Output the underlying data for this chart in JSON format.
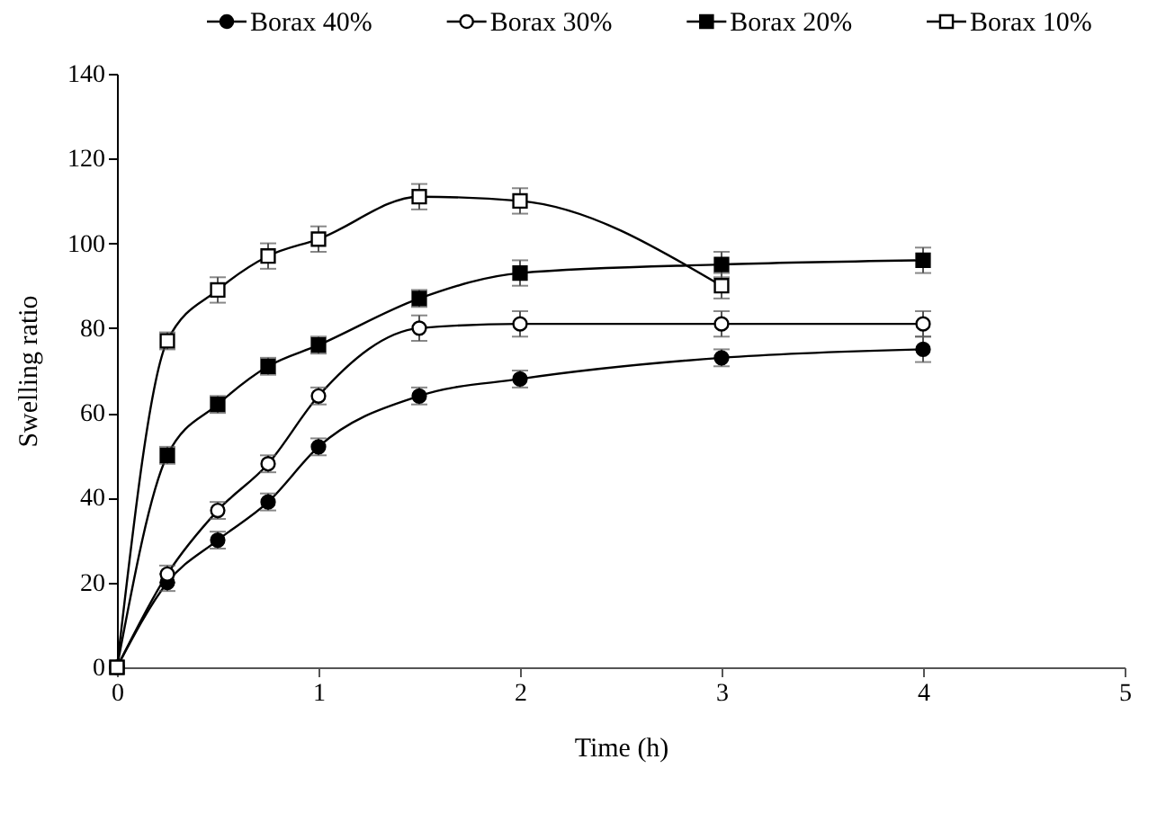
{
  "chart_data": {
    "type": "line",
    "xlabel": "Time (h)",
    "ylabel": "Swelling ratio",
    "xlim": [
      0,
      5
    ],
    "xticks": [
      0,
      1,
      2,
      3,
      4,
      5
    ],
    "ylim": [
      0,
      140
    ],
    "yticks": [
      0,
      20,
      40,
      60,
      80,
      100,
      120,
      140
    ],
    "grid": false,
    "legend": "top",
    "line_style": "solid",
    "x": [
      0,
      0.25,
      0.5,
      0.75,
      1,
      1.5,
      2,
      3,
      4
    ],
    "series": [
      {
        "name": "Borax 40%",
        "color": "#000000",
        "marker": "circle",
        "values": [
          0,
          20,
          30,
          39,
          52,
          64,
          68,
          73,
          75
        ],
        "errors": [
          null,
          2,
          2,
          2,
          2,
          2,
          2,
          2,
          3
        ]
      },
      {
        "name": "Borax 30%",
        "color": "#000000",
        "marker": "circle",
        "values": [
          0,
          22,
          37,
          48,
          64,
          80,
          81,
          81,
          81
        ],
        "errors": [
          null,
          2,
          2,
          2,
          2,
          3,
          3,
          3,
          3
        ]
      },
      {
        "name": "Borax 20%",
        "color": "#000000",
        "marker": "square",
        "values": [
          0,
          50,
          62,
          71,
          76,
          87,
          93,
          95,
          96
        ],
        "errors": [
          null,
          2,
          2,
          2,
          2,
          2,
          3,
          3,
          3
        ]
      },
      {
        "name": "Borax 10%",
        "color": "#000000",
        "marker": "square",
        "values": [
          0,
          77,
          89,
          97,
          101,
          111,
          110,
          90,
          null
        ],
        "errors": [
          null,
          2,
          3,
          3,
          3,
          3,
          3,
          3,
          null
        ]
      }
    ]
  }
}
